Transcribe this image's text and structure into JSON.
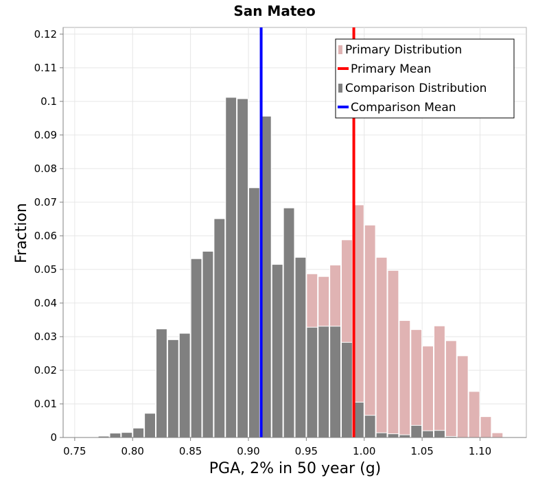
{
  "chart_data": {
    "type": "bar",
    "title": "San Mateo",
    "xlabel": "PGA, 2% in 50 year (g)",
    "ylabel": "Fraction",
    "xlim": [
      0.74,
      1.14
    ],
    "ylim": [
      0,
      0.122
    ],
    "bin_width": 0.01,
    "xticks": [
      0.75,
      0.8,
      0.85,
      0.9,
      0.95,
      1.0,
      1.05,
      1.1
    ],
    "xtick_labels": [
      "0.75",
      "0.80",
      "0.85",
      "0.90",
      "0.95",
      "1.00",
      "1.05",
      "1.10"
    ],
    "yticks": [
      0,
      0.01,
      0.02,
      0.03,
      0.04,
      0.05,
      0.06,
      0.07,
      0.08,
      0.09,
      0.1,
      0.11,
      0.12
    ],
    "ytick_labels": [
      "0",
      "0.01",
      "0.02",
      "0.03",
      "0.04",
      "0.05",
      "0.06",
      "0.07",
      "0.08",
      "0.09",
      "0.1",
      "0.11",
      "0.12"
    ],
    "grid": true,
    "legend_position": "top-right",
    "series": [
      {
        "name": "Primary Distribution",
        "kind": "histogram",
        "color": "#e0b3b3",
        "x": [
          0.755,
          0.765,
          0.775,
          0.785,
          0.795,
          0.805,
          0.815,
          0.825,
          0.835,
          0.845,
          0.855,
          0.865,
          0.875,
          0.885,
          0.895,
          0.905,
          0.915,
          0.925,
          0.935,
          0.945,
          0.955,
          0.965,
          0.975,
          0.985,
          0.995,
          1.005,
          1.015,
          1.025,
          1.035,
          1.045,
          1.055,
          1.065,
          1.075,
          1.085,
          1.095,
          1.105,
          1.115,
          1.125
        ],
        "values": [
          0,
          0,
          0,
          0,
          0,
          0,
          0,
          0,
          0,
          0,
          0,
          0,
          0,
          0,
          0,
          0,
          0,
          0,
          0,
          0.0455,
          0.0487,
          0.0479,
          0.0513,
          0.0588,
          0.0692,
          0.0632,
          0.0536,
          0.0497,
          0.0348,
          0.0321,
          0.0272,
          0.0332,
          0.0288,
          0.0243,
          0.0137,
          0.0062,
          0.0014,
          0
        ]
      },
      {
        "name": "Primary Mean",
        "kind": "vline",
        "color": "#ff0000",
        "x": 0.991
      },
      {
        "name": "Comparison Distribution",
        "kind": "histogram",
        "color": "#808080",
        "x": [
          0.755,
          0.765,
          0.775,
          0.785,
          0.795,
          0.805,
          0.815,
          0.825,
          0.835,
          0.845,
          0.855,
          0.865,
          0.875,
          0.885,
          0.895,
          0.905,
          0.915,
          0.925,
          0.935,
          0.945,
          0.955,
          0.965,
          0.975,
          0.985,
          0.995,
          1.005,
          1.015,
          1.025,
          1.035,
          1.045,
          1.055,
          1.065,
          1.075,
          1.085,
          1.095,
          1.105,
          1.115,
          1.125
        ],
        "values": [
          0.0001,
          0.0002,
          0.0004,
          0.0013,
          0.0015,
          0.0028,
          0.0072,
          0.0323,
          0.0291,
          0.031,
          0.0532,
          0.0554,
          0.0651,
          0.1012,
          0.1008,
          0.0743,
          0.0956,
          0.0515,
          0.0683,
          0.0536,
          0.0328,
          0.0331,
          0.0331,
          0.0283,
          0.0105,
          0.0066,
          0.0014,
          0.0011,
          0.0008,
          0.0036,
          0.002,
          0.0021,
          0.0003,
          0,
          0,
          0,
          0,
          0
        ]
      },
      {
        "name": "Comparison Mean",
        "kind": "vline",
        "color": "#0000ff",
        "x": 0.911
      }
    ]
  }
}
